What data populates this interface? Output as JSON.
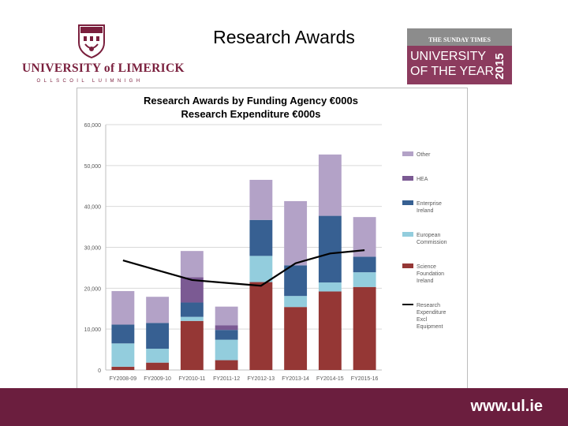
{
  "header": {
    "page_title": "Research Awards",
    "logo_name": "UNIVERSITY of LIMERICK",
    "logo_subtitle": "OLLSCOIL LUIMNIGH",
    "badge": {
      "masthead": "THE SUNDAY TIMES",
      "line1": "UNIVERSITY",
      "line2": "OF THE YEAR",
      "year": "2015"
    }
  },
  "footer": {
    "url": "www.ul.ie"
  },
  "colors": {
    "brand": "#6b1e3e",
    "Other": "#b3a2c7",
    "HEA": "#7b5a93",
    "Enterprise Ireland": "#376092",
    "European Commission": "#93cddd",
    "Science Foundation Ireland": "#953735",
    "line": "#000000"
  },
  "chart_data": {
    "type": "bar",
    "stacked": true,
    "title": "Research Awards by Funding Agency €000s",
    "subtitle": "Research Expenditure €000s",
    "categories": [
      "FY2008-09",
      "FY2009-10",
      "FY2010-11",
      "FY2011-12",
      "FY2012-13",
      "FY2013-14",
      "FY2014-15",
      "FY2015-16"
    ],
    "ylim": [
      0,
      60000
    ],
    "yticks": [
      0,
      10000,
      20000,
      30000,
      40000,
      50000,
      60000
    ],
    "ytick_labels": [
      "0",
      "10,000",
      "20,000",
      "30,000",
      "40,000",
      "50,000",
      "60,000"
    ],
    "grid": true,
    "legend_position": "right",
    "series": [
      {
        "name": "Science Foundation Ireland",
        "legend_label": "Science Foundation Ireland",
        "values": [
          800,
          1800,
          12000,
          2400,
          21500,
          15400,
          19200,
          20300
        ]
      },
      {
        "name": "European Commission",
        "legend_label": "European Commission",
        "values": [
          5700,
          3400,
          1000,
          5000,
          6400,
          2700,
          2200,
          3600
        ]
      },
      {
        "name": "Enterprise Ireland",
        "legend_label": "Enterprise Ireland",
        "values": [
          4600,
          6300,
          3500,
          2400,
          8800,
          7500,
          16300,
          3800
        ]
      },
      {
        "name": "HEA",
        "legend_label": "HEA",
        "values": [
          0,
          0,
          6200,
          1100,
          0,
          0,
          0,
          0
        ]
      },
      {
        "name": "Other",
        "legend_label": "Other",
        "values": [
          8200,
          6400,
          6400,
          4600,
          9800,
          15700,
          15000,
          9700
        ]
      }
    ],
    "line_series": {
      "name": "Research Expenditure Excl Equipment",
      "legend_label": "Research Expenditure Excl Equipment",
      "values": [
        26800,
        24400,
        22000,
        21300,
        20600,
        26100,
        28500,
        29300
      ]
    }
  }
}
